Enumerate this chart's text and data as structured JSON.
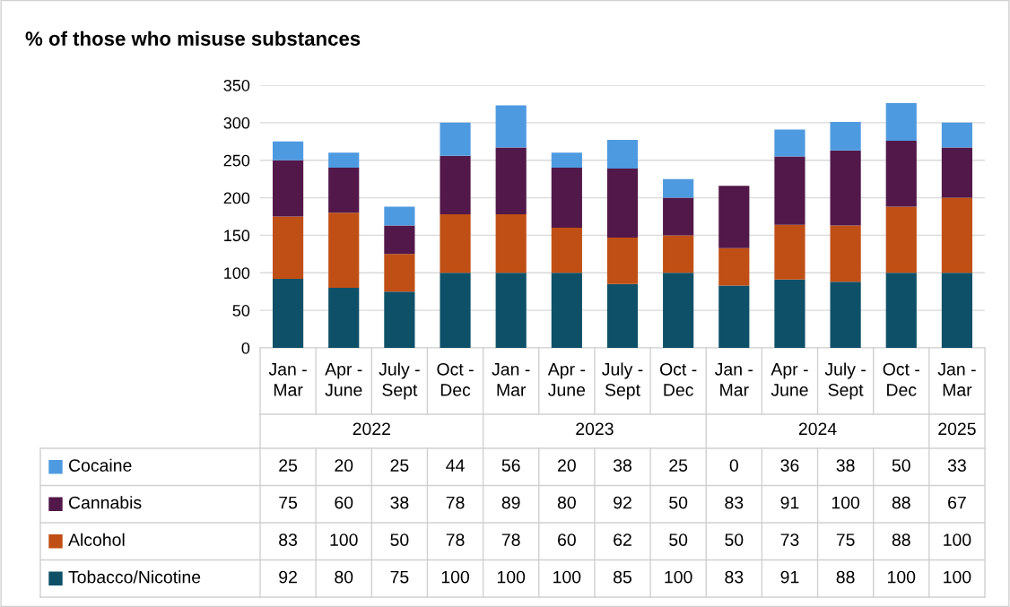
{
  "chart_data": {
    "type": "bar",
    "title": "% of those who misuse substances",
    "stacked": true,
    "categories": [
      "Jan - Mar",
      "Apr - June",
      "July - Sept",
      "Oct - Dec",
      "Jan - Mar",
      "Apr - June",
      "July - Sept",
      "Oct - Dec",
      "Jan - Mar",
      "Apr - June",
      "July - Sept",
      "Oct - Dec",
      "Jan - Mar"
    ],
    "series": [
      {
        "name": "Tobacco/Nicotine",
        "color": "#0e5068",
        "values": [
          92,
          80,
          75,
          100,
          100,
          100,
          85,
          100,
          83,
          91,
          88,
          100,
          100
        ]
      },
      {
        "name": "Alcohol",
        "color": "#c04f15",
        "values": [
          83,
          100,
          50,
          78,
          78,
          60,
          62,
          50,
          50,
          73,
          75,
          88,
          100
        ]
      },
      {
        "name": "Cannabis",
        "color": "#521849",
        "values": [
          75,
          60,
          38,
          78,
          89,
          80,
          92,
          50,
          83,
          91,
          100,
          88,
          67
        ]
      },
      {
        "name": "Cocaine",
        "color": "#4e9ae0",
        "values": [
          25,
          20,
          25,
          44,
          56,
          20,
          38,
          25,
          0,
          36,
          38,
          50,
          33
        ]
      }
    ],
    "annotations": [
      "2022",
      "2023",
      "2024",
      "2025"
    ],
    "ylim": [
      0,
      350
    ],
    "yticks": [
      0,
      50,
      100,
      150,
      200,
      250,
      300,
      350
    ],
    "grid": "y",
    "legend": "bottom",
    "data_labels": true
  }
}
